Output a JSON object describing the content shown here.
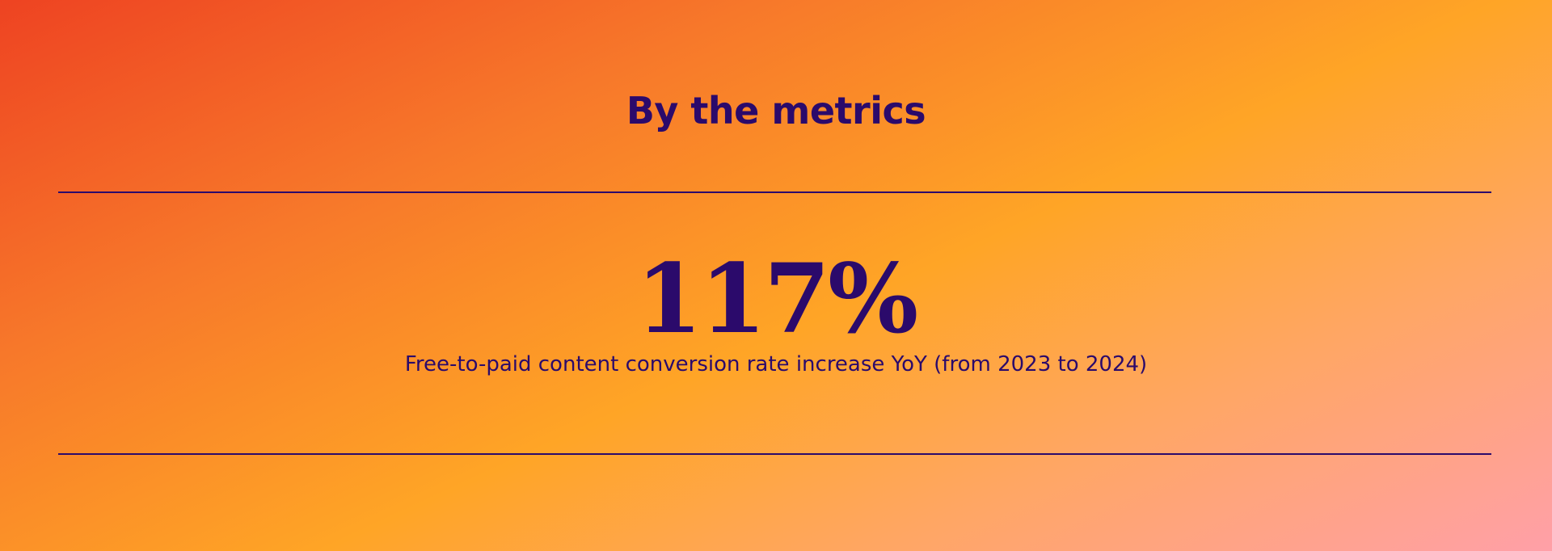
{
  "section": {
    "title": "By the metrics",
    "metric_value": "117%",
    "metric_description": "Free-to-paid content conversion rate increase YoY (from 2023 to 2024)"
  },
  "colors": {
    "text": "#2b0a6b",
    "gradient_start": "#ee4322",
    "gradient_mid": "#ffa526",
    "gradient_end": "#ffa0a8"
  }
}
